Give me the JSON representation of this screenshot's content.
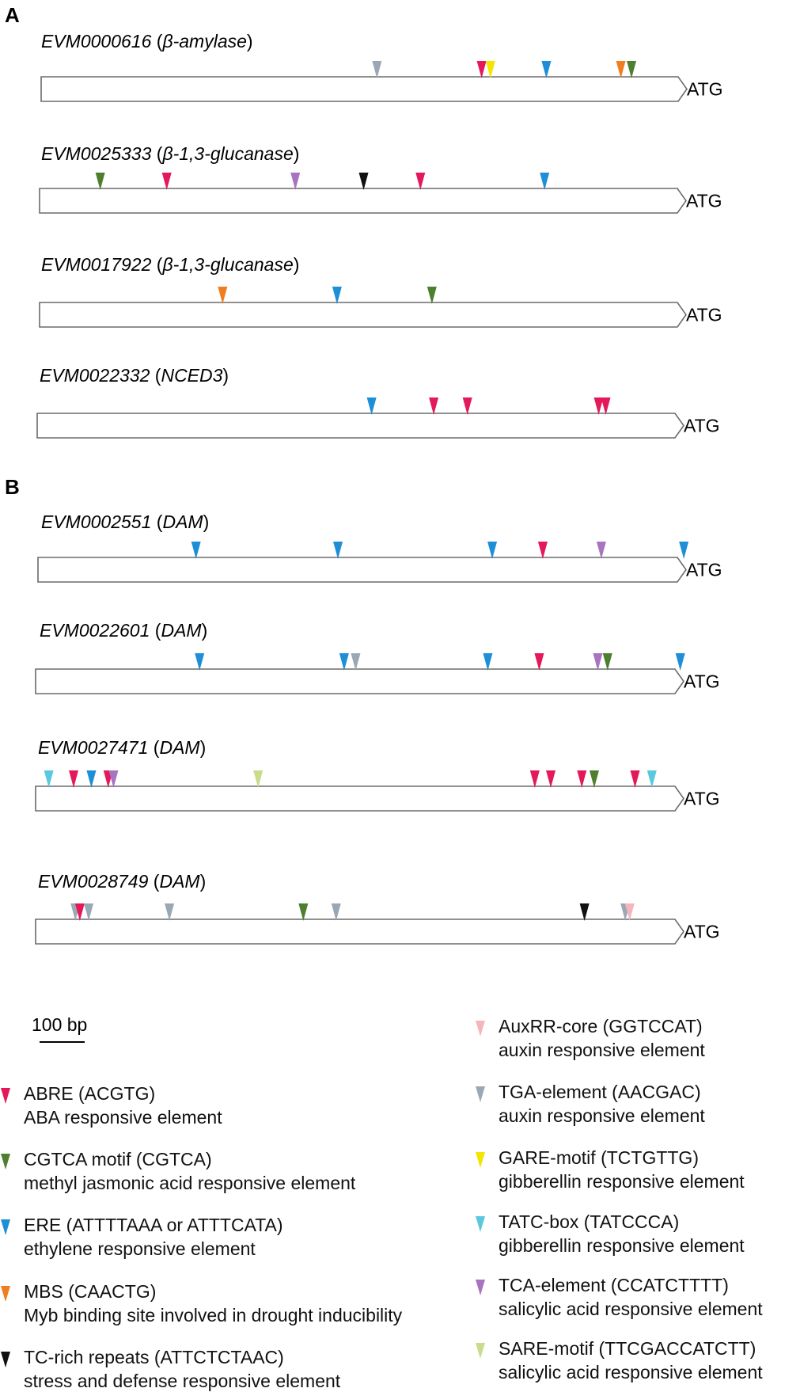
{
  "panels": {
    "A": {
      "label": "A"
    },
    "B": {
      "label": "B"
    }
  },
  "atg_label": "ATG",
  "element_colors": {
    "ABRE": "#e3195a",
    "CGTCA": "#4d7f2f",
    "ERE": "#1e8ed6",
    "MBS": "#f07d1e",
    "TC": "#111111",
    "AuxRR": "#f4b6bc",
    "TGA": "#9aa8b5",
    "GARE": "#f2e600",
    "TATC": "#5ac8df",
    "TCA": "#a874c0",
    "SARE": "#c8dc8c"
  },
  "genes": [
    {
      "id": "EVM0000616",
      "desc": "β-amylase",
      "markers": [
        [
          "TGA",
          425
        ],
        [
          "ABRE",
          543
        ],
        [
          "GARE",
          553
        ],
        [
          "ERE",
          616
        ],
        [
          "MBS",
          700
        ],
        [
          "CGTCA",
          712
        ]
      ]
    },
    {
      "id": "EVM0025333",
      "desc": "β-1,3-glucanase",
      "markers": [
        [
          "CGTCA",
          113
        ],
        [
          "ABRE",
          188
        ],
        [
          "TCA",
          333
        ],
        [
          "TC",
          410
        ],
        [
          "ABRE",
          474
        ],
        [
          "ERE",
          614
        ]
      ]
    },
    {
      "id": "EVM0017922",
      "desc": "β-1,3-glucanase",
      "markers": [
        [
          "MBS",
          251
        ],
        [
          "ERE",
          380
        ],
        [
          "CGTCA",
          487
        ]
      ]
    },
    {
      "id": "EVM0022332",
      "desc": "NCED3",
      "markers": [
        [
          "ERE",
          419
        ],
        [
          "ABRE",
          489
        ],
        [
          "ABRE",
          527
        ],
        [
          "ABRE",
          675
        ],
        [
          "ABRE",
          683
        ]
      ]
    },
    {
      "id": "EVM0002551",
      "desc": "DAM",
      "markers": [
        [
          "ERE",
          221
        ],
        [
          "ERE",
          381
        ],
        [
          "ERE",
          555
        ],
        [
          "ABRE",
          612
        ],
        [
          "TCA",
          678
        ],
        [
          "ERE",
          771
        ]
      ]
    },
    {
      "id": "EVM0022601",
      "desc": "DAM",
      "markers": [
        [
          "ERE",
          225
        ],
        [
          "ERE",
          388
        ],
        [
          "TGA",
          401
        ],
        [
          "ERE",
          550
        ],
        [
          "ABRE",
          608
        ],
        [
          "TCA",
          674
        ],
        [
          "CGTCA",
          685
        ],
        [
          "ERE",
          767
        ]
      ]
    },
    {
      "id": "EVM0027471",
      "desc": "DAM",
      "markers": [
        [
          "TATC",
          55
        ],
        [
          "ABRE",
          83
        ],
        [
          "ERE",
          103
        ],
        [
          "ABRE",
          122
        ],
        [
          "TCA",
          128
        ],
        [
          "SARE",
          291
        ],
        [
          "ABRE",
          603
        ],
        [
          "ABRE",
          621
        ],
        [
          "ABRE",
          656
        ],
        [
          "CGTCA",
          670
        ],
        [
          "ABRE",
          716
        ],
        [
          "TATC",
          735
        ]
      ]
    },
    {
      "id": "EVM0028749",
      "desc": "DAM",
      "markers": [
        [
          "TGA",
          85
        ],
        [
          "ABRE",
          90
        ],
        [
          "TGA",
          100
        ],
        [
          "TGA",
          191
        ],
        [
          "CGTCA",
          342
        ],
        [
          "TGA",
          379
        ],
        [
          "TC",
          659
        ],
        [
          "TGA",
          705
        ],
        [
          "AuxRR",
          710
        ]
      ]
    }
  ],
  "scale_bar": {
    "label": "100 bp"
  },
  "legend": [
    {
      "key": "ABRE",
      "name": "ABRE (ACGTG)",
      "desc": "ABA responsive element"
    },
    {
      "key": "CGTCA",
      "name": "CGTCA motif (CGTCA)",
      "desc": "methyl jasmonic acid responsive element"
    },
    {
      "key": "ERE",
      "name": "ERE (ATTTTAAA or ATTTCATA)",
      "desc": "ethylene responsive element"
    },
    {
      "key": "MBS",
      "name": "MBS (CAACTG)",
      "desc": "Myb binding site involved in drought inducibility"
    },
    {
      "key": "TC",
      "name": "TC-rich repeats (ATTCTCTAAC)",
      "desc": "stress and defense responsive element"
    },
    {
      "key": "AuxRR",
      "name": "AuxRR-core (GGTCCAT)",
      "desc": "auxin responsive element"
    },
    {
      "key": "TGA",
      "name": "TGA-element (AACGAC)",
      "desc": "auxin responsive element"
    },
    {
      "key": "GARE",
      "name": "GARE-motif (TCTGTTG)",
      "desc": "gibberellin responsive element"
    },
    {
      "key": "TATC",
      "name": "TATC-box (TATCCCA)",
      "desc": "gibberellin responsive element"
    },
    {
      "key": "TCA",
      "name": "TCA-element (CCATCTTTT)",
      "desc": "salicylic acid responsive element"
    },
    {
      "key": "SARE",
      "name": "SARE-motif (TTCGACCATCTT)",
      "desc": "salicylic acid responsive element"
    }
  ]
}
